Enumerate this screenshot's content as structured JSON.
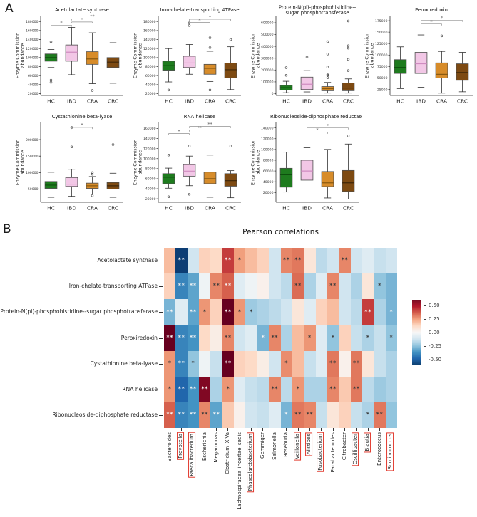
{
  "panel_a": {
    "label": "A",
    "ylabel_line1": "Enzyme Commission",
    "ylabel_line2": "abundance",
    "groups": [
      "HC",
      "IBD",
      "CRA",
      "CRC"
    ],
    "group_colors": {
      "HC": "#1e7b1e",
      "IBD": "#f2c7e6",
      "CRA": "#d78c2a",
      "CRC": "#7d4a12"
    },
    "median_colors": {
      "HC": "#0d4f0d",
      "IBD": "#cf8cc0",
      "CRA": "#8a5a10",
      "CRC": "#3f2607"
    }
  },
  "panel_b": {
    "label": "B",
    "title": "Pearson correlations"
  },
  "chart_data": [
    {
      "type": "box",
      "panel": "A",
      "title": "Acetolactate synthase",
      "ylabel": "Enzyme Commission abundance",
      "categories": [
        "HC",
        "IBD",
        "CRA",
        "CRC"
      ],
      "ylim": [
        16000,
        193000
      ],
      "yticks": [
        20000,
        40000,
        60000,
        80000,
        100000,
        120000,
        140000,
        160000,
        180000
      ],
      "boxes": [
        {
          "group": "HC",
          "whisker_low": 78000,
          "q1": 92000,
          "median": 100000,
          "q3": 108000,
          "whisker_high": 118000,
          "outliers": [
            135000,
            50000,
            45000
          ]
        },
        {
          "group": "IBD",
          "whisker_low": 62000,
          "q1": 92000,
          "median": 112000,
          "q3": 128000,
          "whisker_high": 167000,
          "outliers": []
        },
        {
          "group": "CRA",
          "whisker_low": 42000,
          "q1": 85000,
          "median": 97000,
          "q3": 113000,
          "whisker_high": 155000,
          "outliers": [
            27000
          ]
        },
        {
          "group": "CRC",
          "whisker_low": 43000,
          "q1": 78000,
          "median": 90000,
          "q3": 100000,
          "whisker_high": 133000,
          "outliers": []
        }
      ],
      "significance": [
        {
          "groups": [
            "HC",
            "IBD"
          ],
          "label": "*",
          "y": 172000
        },
        {
          "groups": [
            "IBD",
            "CRA"
          ],
          "label": "*",
          "y": 179000
        },
        {
          "groups": [
            "IBD",
            "CRC"
          ],
          "label": "**",
          "y": 186000
        }
      ]
    },
    {
      "type": "box",
      "panel": "A",
      "title": "Iron-chelate-transporting ATPase",
      "ylabel": "Enzyme Commission abundance",
      "categories": [
        "HC",
        "IBD",
        "CRA",
        "CRC"
      ],
      "ylim": [
        16000,
        193000
      ],
      "yticks": [
        20000,
        40000,
        60000,
        80000,
        100000,
        120000,
        140000,
        160000,
        180000
      ],
      "boxes": [
        {
          "group": "HC",
          "whisker_low": 46000,
          "q1": 72000,
          "median": 82000,
          "q3": 92000,
          "whisker_high": 120000,
          "outliers": [
            28000
          ]
        },
        {
          "group": "IBD",
          "whisker_low": 63000,
          "q1": 78000,
          "median": 88000,
          "q3": 103000,
          "whisker_high": 129000,
          "outliers": [
            177000,
            171000
          ]
        },
        {
          "group": "CRA",
          "whisker_low": 47000,
          "q1": 63000,
          "median": 76000,
          "q3": 85000,
          "whisker_high": 114000,
          "outliers": [
            144000,
            122000,
            28000
          ]
        },
        {
          "group": "CRC",
          "whisker_low": 29000,
          "q1": 55000,
          "median": 73000,
          "q3": 88000,
          "whisker_high": 124000,
          "outliers": [
            140000
          ]
        }
      ],
      "significance": [
        {
          "groups": [
            "IBD",
            "CRA"
          ],
          "label": "*",
          "y": 178000
        },
        {
          "groups": [
            "IBD",
            "CRC"
          ],
          "label": "*",
          "y": 185000
        }
      ]
    },
    {
      "type": "box",
      "panel": "A",
      "title": "Protein-N(pi)-phosphohistidine--",
      "title_line2": "sugar phosphotransferase",
      "ylabel": "Enzyme Commission abundance",
      "categories": [
        "HC",
        "IBD",
        "CRA",
        "CRC"
      ],
      "ylim": [
        -15000,
        660000
      ],
      "yticks": [
        0,
        100000,
        200000,
        300000,
        400000,
        500000,
        600000
      ],
      "boxes": [
        {
          "group": "HC",
          "whisker_low": 8000,
          "q1": 30000,
          "median": 50000,
          "q3": 70000,
          "whisker_high": 105000,
          "outliers": [
            155000,
            220000
          ]
        },
        {
          "group": "IBD",
          "whisker_low": 15000,
          "q1": 35000,
          "median": 80000,
          "q3": 140000,
          "whisker_high": 195000,
          "outliers": [
            310000
          ]
        },
        {
          "group": "CRA",
          "whisker_low": 5000,
          "q1": 25000,
          "median": 42000,
          "q3": 60000,
          "whisker_high": 95000,
          "outliers": [
            135000,
            155000,
            160000,
            225000,
            335000,
            440000
          ]
        },
        {
          "group": "CRC",
          "whisker_low": 5000,
          "q1": 25000,
          "median": 48000,
          "q3": 90000,
          "whisker_high": 125000,
          "outliers": [
            195000,
            290000,
            385000,
            405000,
            615000
          ]
        }
      ],
      "significance": []
    },
    {
      "type": "box",
      "panel": "A",
      "title": "Peroxiredoxin",
      "ylabel": "Enzyme Commission abundance",
      "categories": [
        "HC",
        "IBD",
        "CRA",
        "CRC"
      ],
      "ylim": [
        12000,
        186000
      ],
      "yticks": [
        25000,
        50000,
        75000,
        100000,
        125000,
        150000,
        175000
      ],
      "boxes": [
        {
          "group": "HC",
          "whisker_low": 27000,
          "q1": 60000,
          "median": 73000,
          "q3": 90000,
          "whisker_high": 118000,
          "outliers": []
        },
        {
          "group": "IBD",
          "whisker_low": 30000,
          "q1": 60000,
          "median": 81000,
          "q3": 106000,
          "whisker_high": 144000,
          "outliers": []
        },
        {
          "group": "CRA",
          "whisker_low": 17000,
          "q1": 50000,
          "median": 58000,
          "q3": 83000,
          "whisker_high": 108000,
          "outliers": [
            142000
          ]
        },
        {
          "group": "CRC",
          "whisker_low": 20000,
          "q1": 45000,
          "median": 62000,
          "q3": 81000,
          "whisker_high": 106000,
          "outliers": []
        }
      ],
      "significance": [
        {
          "groups": [
            "IBD",
            "CRA"
          ],
          "label": "*",
          "y": 168000
        },
        {
          "groups": [
            "IBD",
            "CRC"
          ],
          "label": "*",
          "y": 176000
        }
      ]
    },
    {
      "type": "box",
      "panel": "A",
      "title": "Cystathionine beta-lyase",
      "ylabel": "Enzyme Commission abundance",
      "categories": [
        "HC",
        "IBD",
        "CRA",
        "CRC"
      ],
      "ylim": [
        10000,
        252000
      ],
      "yticks": [
        50000,
        100000,
        150000,
        200000
      ],
      "boxes": [
        {
          "group": "HC",
          "whisker_low": 25000,
          "q1": 52000,
          "median": 62000,
          "q3": 73000,
          "whisker_high": 101000,
          "outliers": []
        },
        {
          "group": "IBD",
          "whisker_low": 28000,
          "q1": 58000,
          "median": 65000,
          "q3": 85000,
          "whisker_high": 110000,
          "outliers": [
            178000,
            237000
          ]
        },
        {
          "group": "CRA",
          "whisker_low": 35000,
          "q1": 52000,
          "median": 60000,
          "q3": 68000,
          "whisker_high": 88000,
          "outliers": [
            95000,
            100000,
            30000
          ]
        },
        {
          "group": "CRC",
          "whisker_low": 25000,
          "q1": 50000,
          "median": 60000,
          "q3": 70000,
          "whisker_high": 98000,
          "outliers": [
            185000
          ]
        }
      ],
      "significance": [
        {
          "groups": [
            "IBD",
            "CRA"
          ],
          "label": "*",
          "y": 237000
        }
      ]
    },
    {
      "type": "box",
      "panel": "A",
      "title": "RNA helicase",
      "ylabel": "Enzyme Commission abundance",
      "categories": [
        "HC",
        "IBD",
        "CRA",
        "CRC"
      ],
      "ylim": [
        13000,
        172000
      ],
      "yticks": [
        20000,
        40000,
        60000,
        80000,
        100000,
        120000,
        140000,
        160000
      ],
      "boxes": [
        {
          "group": "HC",
          "whisker_low": 41000,
          "q1": 50000,
          "median": 63000,
          "q3": 70000,
          "whisker_high": 81000,
          "outliers": [
            107000,
            24000
          ]
        },
        {
          "group": "IBD",
          "whisker_low": 46000,
          "q1": 65000,
          "median": 75000,
          "q3": 88000,
          "whisker_high": 105000,
          "outliers": [
            125000,
            29000
          ]
        },
        {
          "group": "CRA",
          "whisker_low": 23000,
          "q1": 50000,
          "median": 60000,
          "q3": 73000,
          "whisker_high": 107000,
          "outliers": []
        },
        {
          "group": "CRC",
          "whisker_low": 22000,
          "q1": 45000,
          "median": 56000,
          "q3": 70000,
          "whisker_high": 76000,
          "outliers": [
            125000
          ]
        }
      ],
      "significance": [
        {
          "groups": [
            "HC",
            "IBD"
          ],
          "label": "*",
          "y": 150000
        },
        {
          "groups": [
            "IBD",
            "CRA"
          ],
          "label": "**",
          "y": 157000
        },
        {
          "groups": [
            "IBD",
            "CRC"
          ],
          "label": "**",
          "y": 164000
        }
      ]
    },
    {
      "type": "box",
      "panel": "A",
      "title": "Ribonucleoside-diphosphate reductase",
      "ylabel": "Enzyme Commission abundance",
      "categories": [
        "HC",
        "IBD",
        "CRA",
        "CRC"
      ],
      "ylim": [
        2000,
        150000
      ],
      "yticks": [
        20000,
        40000,
        60000,
        80000,
        100000,
        120000,
        140000
      ],
      "boxes": [
        {
          "group": "HC",
          "whisker_low": 21000,
          "q1": 30000,
          "median": 53000,
          "q3": 65000,
          "whisker_high": 95000,
          "outliers": []
        },
        {
          "group": "IBD",
          "whisker_low": 12000,
          "q1": 43000,
          "median": 60000,
          "q3": 80000,
          "whisker_high": 103000,
          "outliers": []
        },
        {
          "group": "CRA",
          "whisker_low": 10000,
          "q1": 31000,
          "median": 38000,
          "q3": 59000,
          "whisker_high": 100000,
          "outliers": []
        },
        {
          "group": "CRC",
          "whisker_low": 8000,
          "q1": 22000,
          "median": 38000,
          "q3": 61000,
          "whisker_high": 110000,
          "outliers": [
            125000
          ]
        }
      ],
      "significance": [
        {
          "groups": [
            "IBD",
            "CRA"
          ],
          "label": "*",
          "y": 132000
        },
        {
          "groups": [
            "IBD",
            "CRC"
          ],
          "label": "*",
          "y": 140000
        }
      ]
    },
    {
      "type": "heatmap",
      "panel": "B",
      "title": "Pearson correlations",
      "rows": [
        "Acetolactate synthase",
        "Iron-chelate-transporting ATPase",
        "Protein-N(pi)-phosphohistidine--sugar phosphotransferase",
        "Peroxiredoxin",
        "Cystathionine beta-lyase",
        "RNA helicase",
        "Ribonucleoside-diphosphate reductase"
      ],
      "columns": [
        "Bacteroides",
        "Prevotella",
        "Faecalibacterium",
        "Escherichia",
        "Megamonas",
        "Clostridium_XIVa",
        "Lachnospiracea_incertae_sedis",
        "Phascolarctobacterium",
        "Gemmiger",
        "Salmonella",
        "Roseburia",
        "Veillonella",
        "Alistipes",
        "Fusobacterium",
        "Parabacteroides",
        "Citrobacter",
        "Oscillibacter",
        "Blautia",
        "Enterococcus",
        "Ruminococcus"
      ],
      "highlighted_columns": [
        "Prevotella",
        "Faecalibacterium",
        "Phascolarctobacterium",
        "Veillonella",
        "Alistipes",
        "Fusobacterium",
        "Oscillibacter",
        "Blautia",
        "Ruminococcus"
      ],
      "values": [
        [
          0.15,
          -0.65,
          -0.08,
          0.1,
          0.08,
          0.5,
          0.22,
          0.15,
          0.1,
          -0.08,
          0.3,
          0.35,
          0.05,
          -0.12,
          -0.08,
          0.3,
          -0.08,
          -0.05,
          -0.1,
          -0.08
        ],
        [
          0.1,
          -0.4,
          -0.3,
          -0.02,
          0.3,
          0.45,
          -0.05,
          -0.02,
          0.02,
          -0.08,
          -0.12,
          0.4,
          -0.15,
          -0.05,
          0.3,
          -0.08,
          -0.15,
          0.05,
          -0.2,
          -0.25
        ],
        [
          -0.25,
          -0.05,
          -0.3,
          0.25,
          0.1,
          0.7,
          0.25,
          -0.18,
          -0.15,
          -0.12,
          -0.08,
          0.05,
          -0.05,
          0.1,
          0.15,
          -0.08,
          -0.12,
          0.5,
          -0.15,
          -0.25
        ],
        [
          0.7,
          -0.4,
          -0.35,
          0.08,
          0.03,
          0.3,
          -0.08,
          -0.05,
          -0.25,
          0.3,
          -0.15,
          0.15,
          0.25,
          -0.05,
          -0.2,
          0.1,
          -0.1,
          -0.15,
          -0.1,
          -0.2
        ],
        [
          0.25,
          -0.4,
          -0.2,
          -0.02,
          -0.1,
          0.7,
          0.1,
          0.08,
          0.03,
          -0.08,
          0.28,
          0.15,
          -0.1,
          -0.05,
          0.35,
          0.02,
          0.35,
          0.05,
          -0.1,
          -0.15
        ],
        [
          0.25,
          -0.5,
          -0.35,
          0.65,
          -0.15,
          0.25,
          -0.05,
          -0.1,
          -0.12,
          0.3,
          -0.12,
          0.25,
          -0.15,
          -0.15,
          0.3,
          0.12,
          0.35,
          -0.12,
          -0.18,
          -0.15
        ],
        [
          0.45,
          -0.4,
          -0.35,
          0.3,
          -0.3,
          0.12,
          0.02,
          -0.08,
          -0.1,
          -0.05,
          -0.25,
          0.35,
          0.3,
          -0.1,
          0.05,
          0.1,
          -0.1,
          -0.15,
          0.35,
          -0.2
        ]
      ],
      "significance": [
        [
          "",
          "**",
          "",
          "",
          "",
          "**",
          "*",
          "",
          "",
          "",
          "**",
          "**",
          "",
          "",
          "",
          "**",
          "",
          "",
          "",
          ""
        ],
        [
          "",
          "**",
          "**",
          "",
          "**",
          "**",
          "",
          "",
          "",
          "",
          "",
          "**",
          "",
          "",
          "**",
          "",
          "",
          "",
          "*",
          ""
        ],
        [
          "**",
          "",
          "**",
          "*",
          "",
          "**",
          "*",
          "*",
          "",
          "",
          "",
          "",
          "",
          "",
          "",
          "",
          "",
          "**",
          "",
          "*"
        ],
        [
          "**",
          "**",
          "**",
          "",
          "",
          "**",
          "",
          "",
          "*",
          "**",
          "",
          "",
          "*",
          "",
          "*",
          "",
          "",
          "*",
          "",
          "*"
        ],
        [
          "*",
          "**",
          "*",
          "",
          "",
          "**",
          "",
          "",
          "",
          "",
          "*",
          "",
          "",
          "",
          "**",
          "",
          "**",
          "",
          "",
          ""
        ],
        [
          "*",
          "**",
          "**",
          "**",
          "",
          "*",
          "",
          "",
          "",
          "**",
          "",
          "*",
          "",
          "",
          "**",
          "",
          "**",
          "",
          "",
          ""
        ],
        [
          "**",
          "**",
          "**",
          "**",
          "**",
          "",
          "",
          "",
          "",
          "",
          "*",
          "**",
          "**",
          "",
          "",
          "",
          "",
          "*",
          "**",
          ""
        ]
      ],
      "colorbar": {
        "range": [
          -0.6,
          0.6
        ],
        "tick_values": [
          0.5,
          0.25,
          0.0,
          -0.25,
          -0.5
        ],
        "tick_labels": [
          "0.50",
          "0.25",
          "0.00",
          "-0.25",
          "-0.50"
        ]
      }
    }
  ]
}
